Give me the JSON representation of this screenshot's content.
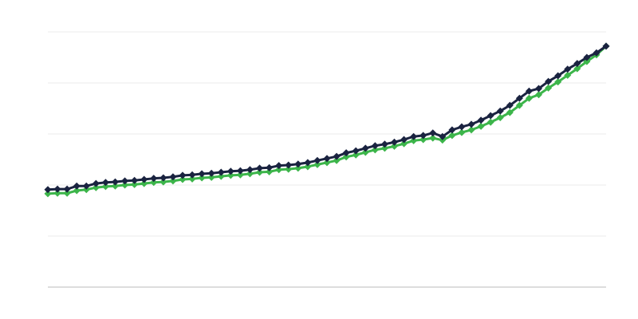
{
  "chart_data": {
    "type": "line",
    "title": "",
    "xlabel": "",
    "ylabel": "",
    "ylim": [
      0,
      5
    ],
    "grid": true,
    "legend": "none",
    "x_count": 59,
    "series": [
      {
        "color": "#1a2340",
        "marker": "diamond",
        "values": [
          1.91,
          1.92,
          1.92,
          1.98,
          1.98,
          2.03,
          2.05,
          2.06,
          2.08,
          2.09,
          2.11,
          2.13,
          2.14,
          2.16,
          2.19,
          2.2,
          2.22,
          2.23,
          2.25,
          2.27,
          2.28,
          2.3,
          2.33,
          2.34,
          2.38,
          2.39,
          2.41,
          2.44,
          2.48,
          2.52,
          2.56,
          2.63,
          2.67,
          2.72,
          2.77,
          2.8,
          2.84,
          2.89,
          2.95,
          2.97,
          3.02,
          2.95,
          3.08,
          3.14,
          3.19,
          3.27,
          3.36,
          3.45,
          3.56,
          3.7,
          3.84,
          3.89,
          4.03,
          4.14,
          4.27,
          4.38,
          4.5,
          4.59,
          4.72
        ]
      },
      {
        "color": "#3cb54a",
        "marker": "diamond",
        "values": [
          1.83,
          1.84,
          1.84,
          1.89,
          1.91,
          1.95,
          1.97,
          1.98,
          2.0,
          2.01,
          2.03,
          2.05,
          2.06,
          2.08,
          2.11,
          2.12,
          2.14,
          2.15,
          2.17,
          2.19,
          2.2,
          2.22,
          2.25,
          2.26,
          2.3,
          2.31,
          2.33,
          2.36,
          2.4,
          2.44,
          2.48,
          2.55,
          2.59,
          2.64,
          2.69,
          2.72,
          2.76,
          2.81,
          2.87,
          2.89,
          2.92,
          2.88,
          2.97,
          3.03,
          3.08,
          3.15,
          3.23,
          3.32,
          3.42,
          3.56,
          3.7,
          3.77,
          3.9,
          4.02,
          4.15,
          4.28,
          4.42,
          4.55,
          4.72
        ]
      }
    ]
  }
}
